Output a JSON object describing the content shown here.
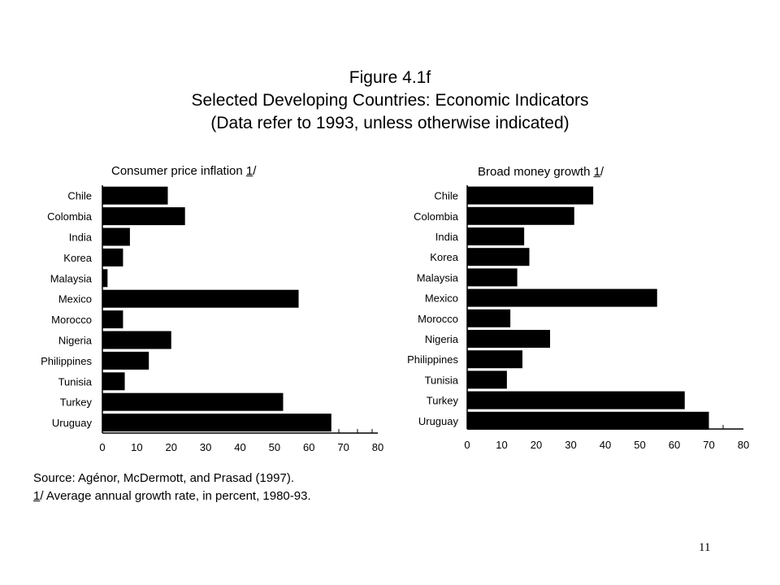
{
  "figure": {
    "title": "Figure 4.1f",
    "subtitle": "Selected Developing Countries: Economic Indicators",
    "note": "(Data refer to 1993, unless otherwise indicated)"
  },
  "chart_data": [
    {
      "type": "bar",
      "orientation": "horizontal",
      "title": "Consumer price inflation",
      "title_footnote_ref": "1",
      "title_suffix": "/",
      "categories": [
        "Chile",
        "Colombia",
        "India",
        "Korea",
        "Malaysia",
        "Mexico",
        "Morocco",
        "Nigeria",
        "Philippines",
        "Tunisia",
        "Turkey",
        "Uruguay"
      ],
      "values": [
        19,
        24,
        8,
        6,
        1.5,
        57,
        6,
        20,
        13.5,
        6.5,
        52.5,
        66.5
      ],
      "xlim": [
        0,
        80
      ],
      "xticks": [
        "0",
        "10",
        "20",
        "30",
        "40",
        "50",
        "60",
        "70",
        "80"
      ],
      "color": "#000000",
      "grid": false
    },
    {
      "type": "bar",
      "orientation": "horizontal",
      "title": "Broad money growth",
      "title_footnote_ref": "1",
      "title_suffix": "/",
      "categories": [
        "Chile",
        "Colombia",
        "India",
        "Korea",
        "Malaysia",
        "Mexico",
        "Morocco",
        "Nigeria",
        "Philippines",
        "Tunisia",
        "Turkey",
        "Uruguay"
      ],
      "values": [
        36.5,
        31,
        16.5,
        18,
        14.5,
        55,
        12.5,
        24,
        16,
        11.5,
        63,
        70
      ],
      "xlim": [
        0,
        80
      ],
      "xticks": [
        "0",
        "10",
        "20",
        "30",
        "40",
        "50",
        "60",
        "70",
        "80"
      ],
      "color": "#000000",
      "grid": false
    }
  ],
  "footnotes": {
    "source": "Source: Agénor, McDermott, and Prasad (1997).",
    "note_ref": "1",
    "note_text": "/ Average annual growth rate, in percent, 1980-93."
  },
  "page_number": "11"
}
